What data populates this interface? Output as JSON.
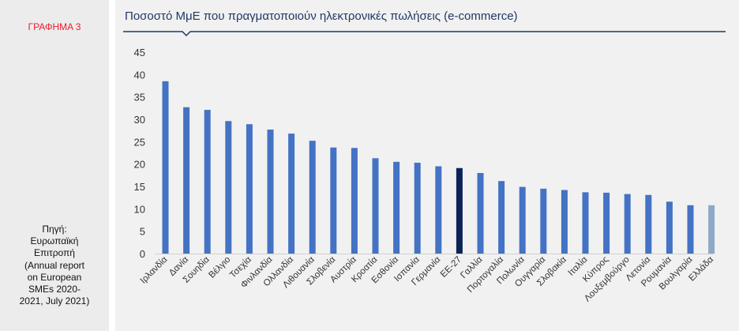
{
  "sidebar": {
    "label": "ΓΡΑΦΗΜΑ 3",
    "source": "Πηγή:\nΕυρωπαϊκή\nΕπιτροπή\n(Annual report\non European\nSMEs 2020-\n2021, July 2021)"
  },
  "colors": {
    "bar": "#4472c4",
    "highlight": "#0c2356",
    "greece": "#8ea9c8",
    "title_line": "#1f3864"
  },
  "chart_data": {
    "type": "bar",
    "title": "Ποσοστό ΜμΕ που πραγματοποιούν ηλεκτρονικές πωλήσεις (e-commerce)",
    "xlabel": "",
    "ylabel": "",
    "ylim": [
      0,
      45
    ],
    "yticks": [
      0,
      5,
      10,
      15,
      20,
      25,
      30,
      35,
      40,
      45
    ],
    "grid": false,
    "categories": [
      "Ιρλανδία",
      "Δανία",
      "Σουηδία",
      "Βέλγιο",
      "Τσεχία",
      "Φινλανδία",
      "Ολλανδία",
      "Λιθουανία",
      "Σλοβενία",
      "Αυστρία",
      "Κροατία",
      "Εσθονία",
      "Ισπανία",
      "Γερμανία",
      "ΕΕ-27",
      "Γαλλία",
      "Πορτογαλία",
      "Πολωνία",
      "Ουγγαρία",
      "Σλοβακία",
      "Ιταλία",
      "Κύπρος",
      "Λουξεμβούργο",
      "Λετονία",
      "Ρουμανία",
      "Βουλγαρία",
      "Ελλάδα"
    ],
    "values": [
      38.5,
      32.7,
      32.1,
      29.6,
      28.9,
      27.7,
      26.8,
      25.2,
      23.7,
      23.6,
      21.3,
      20.5,
      20.3,
      19.5,
      19.1,
      18.0,
      16.2,
      14.9,
      14.5,
      14.2,
      13.7,
      13.6,
      13.3,
      13.1,
      11.6,
      10.8,
      10.8
    ],
    "highlight": {
      "ΕΕ-27": "highlight",
      "Ελλάδα": "greece"
    }
  }
}
